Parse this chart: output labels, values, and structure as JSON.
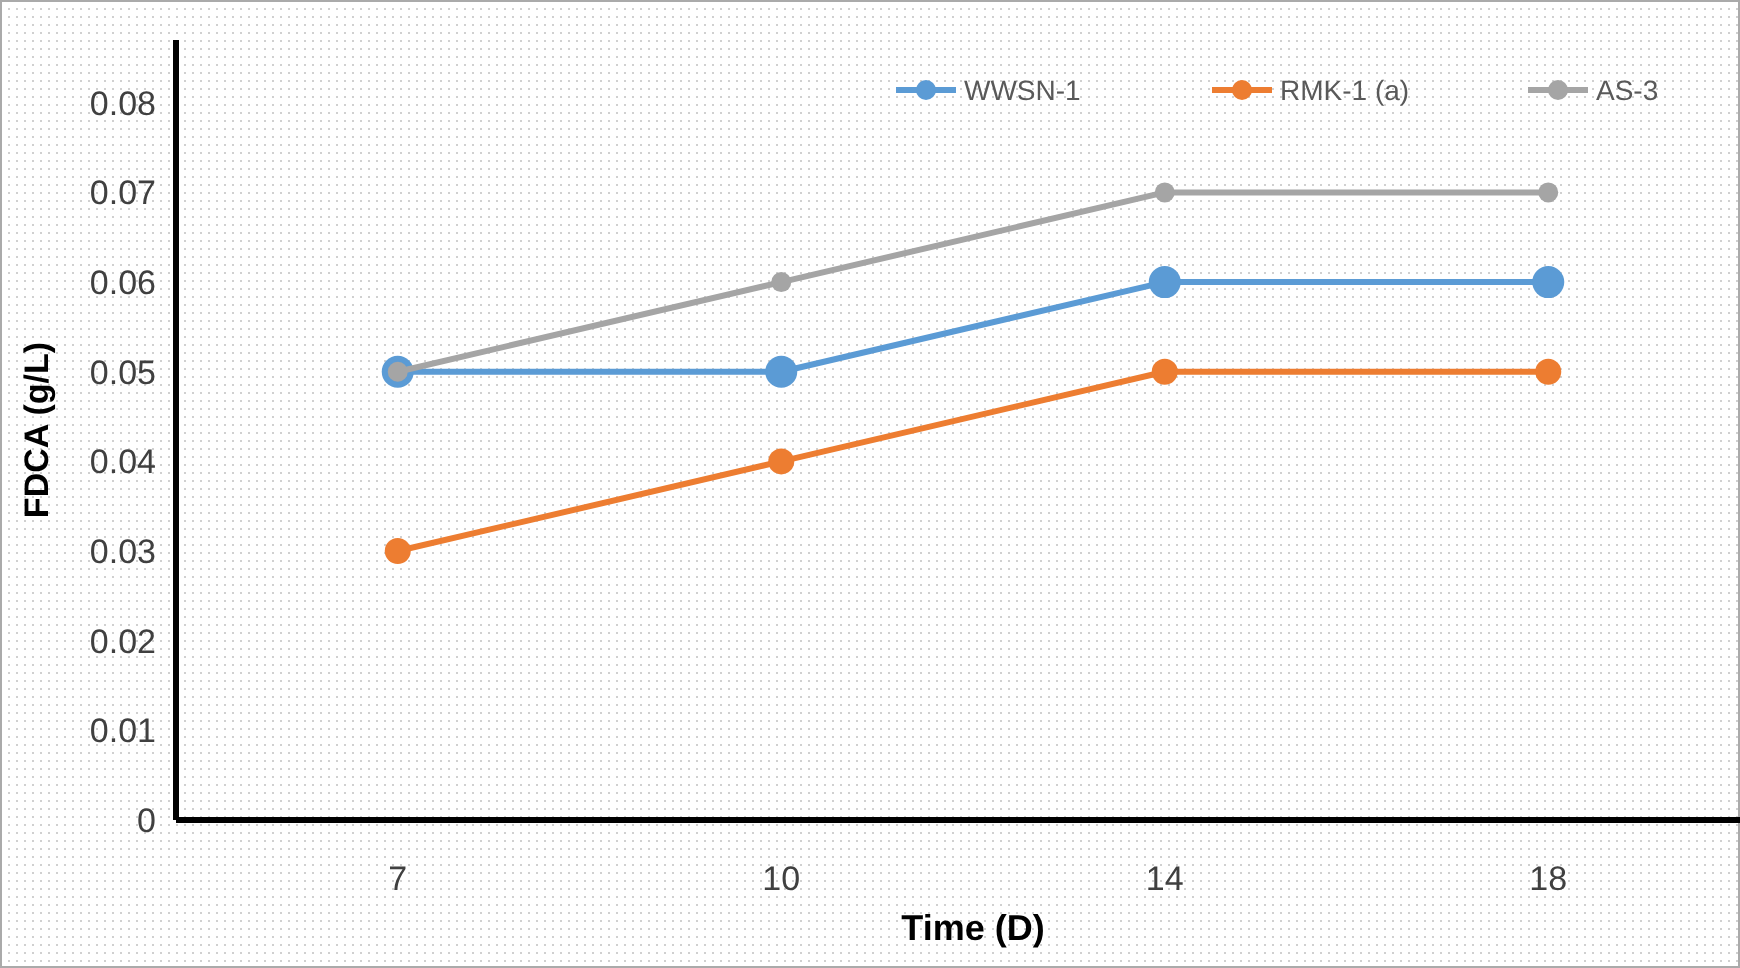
{
  "chart_data": {
    "type": "line",
    "xlabel": "Time (D)",
    "ylabel": "FDCA (g/L)",
    "categories": [
      "7",
      "10",
      "14",
      "18"
    ],
    "series": [
      {
        "name": "WWSN-1",
        "color": "#5b9bd5",
        "values": [
          0.05,
          0.05,
          0.06,
          0.06
        ]
      },
      {
        "name": "RMK-1 (a)",
        "color": "#ed7d31",
        "values": [
          0.03,
          0.04,
          0.05,
          0.05
        ]
      },
      {
        "name": "AS-3",
        "color": "#a5a5a5",
        "values": [
          0.05,
          0.06,
          0.07,
          0.07
        ]
      }
    ],
    "ylim": [
      0,
      0.087
    ],
    "yticks": [
      {
        "value": 0,
        "label": "0"
      },
      0.01,
      0.02,
      0.03,
      0.04,
      0.05,
      0.06,
      0.07,
      0.08
    ],
    "grid": false,
    "legend": "top right",
    "marker": "circle",
    "line_style": "solid"
  }
}
